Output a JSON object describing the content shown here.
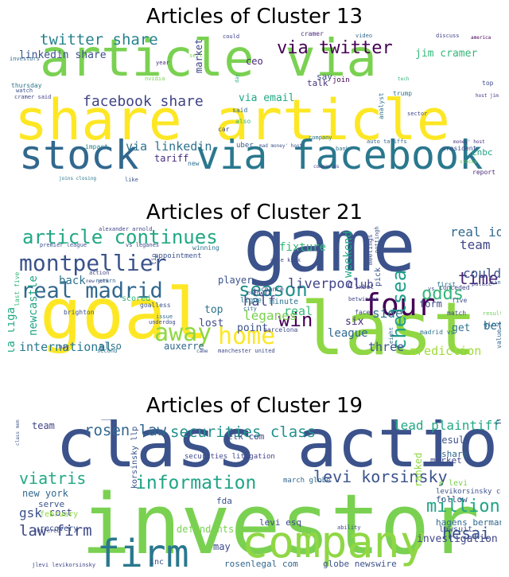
{
  "panels": [
    {
      "title": "Articles of Cluster 13",
      "words": [
        {
          "text": "article via",
          "color": "#7ad151"
        },
        {
          "text": "share article",
          "color": "#fde725"
        },
        {
          "text": "via facebook",
          "color": "#2a788e"
        },
        {
          "text": "stock",
          "color": "#31688e"
        },
        {
          "text": "twitter share",
          "color": "#26828e"
        },
        {
          "text": "linkedin share",
          "color": "#3b528b"
        },
        {
          "text": "via twitter",
          "color": "#440154"
        },
        {
          "text": "facebook share",
          "color": "#414487"
        },
        {
          "text": "via linkedin",
          "color": "#2c728e"
        },
        {
          "text": "via email",
          "color": "#22a884"
        },
        {
          "text": "jim cramer",
          "color": "#35b779"
        },
        {
          "text": "market",
          "color": "#404688"
        },
        {
          "text": "ceo",
          "color": "#482475"
        },
        {
          "text": "say",
          "color": "#3e4a89"
        },
        {
          "text": "talk",
          "color": "#46327e"
        },
        {
          "text": "join",
          "color": "#440154"
        },
        {
          "text": "said",
          "color": "#31688e"
        },
        {
          "text": "tariff",
          "color": "#472d7b"
        },
        {
          "text": "uber",
          "color": "#365c8d"
        },
        {
          "text": "car",
          "color": "#404688"
        },
        {
          "text": "new",
          "color": "#2c728e"
        },
        {
          "text": "cnbc",
          "color": "#20a486"
        },
        {
          "text": "like",
          "color": "#3b528b"
        },
        {
          "text": "impact",
          "color": "#26828e"
        },
        {
          "text": "thursday",
          "color": "#2a788e"
        },
        {
          "text": "investors",
          "color": "#31688e"
        },
        {
          "text": "cramer said",
          "color": "#404688"
        },
        {
          "text": "watch",
          "color": "#3b528b"
        },
        {
          "text": "year",
          "color": "#472d7b"
        },
        {
          "text": "could",
          "color": "#414487"
        },
        {
          "text": "cramer",
          "color": "#482878"
        },
        {
          "text": "video",
          "color": "#31688e"
        },
        {
          "text": "discuss",
          "color": "#414487"
        },
        {
          "text": "america",
          "color": "#440154"
        },
        {
          "text": "top",
          "color": "#3e4a89"
        },
        {
          "text": "analyst",
          "color": "#2c728e"
        },
        {
          "text": "trump",
          "color": "#2a788e"
        },
        {
          "text": "host jim",
          "color": "#46327e"
        },
        {
          "text": "sector",
          "color": "#404688"
        },
        {
          "text": "bank",
          "color": "#2c728e"
        },
        {
          "text": "auto tariffs",
          "color": "#31688e"
        },
        {
          "text": "president",
          "color": "#3e4a89"
        },
        {
          "text": "company",
          "color": "#2a788e"
        },
        {
          "text": "also",
          "color": "#35b779"
        },
        {
          "text": "mad money' host",
          "color": "#3b528b"
        },
        {
          "text": "money' host",
          "color": "#472d7b"
        },
        {
          "text": "companies",
          "color": "#404688"
        },
        {
          "text": "report",
          "color": "#482878"
        },
        {
          "text": "joins closing",
          "color": "#2a788e"
        },
        {
          "text": "nvidia",
          "color": "#7ad151"
        },
        {
          "text": "tech",
          "color": "#35b779"
        },
        {
          "text": "sell",
          "color": "#7ad151"
        },
        {
          "text": "day",
          "color": "#22a884"
        },
        {
          "text": "stocks",
          "color": "#6ccd5a"
        }
      ]
    },
    {
      "title": "Articles of Cluster 21",
      "words": [
        {
          "text": "game",
          "color": "#3b528b"
        },
        {
          "text": "goal",
          "color": "#fde725"
        },
        {
          "text": "last",
          "color": "#8fd744"
        },
        {
          "text": "montpellier",
          "color": "#3b528b"
        },
        {
          "text": "article continues",
          "color": "#22a884"
        },
        {
          "text": "real madrid",
          "color": "#31688e"
        },
        {
          "text": "home",
          "color": "#fde725"
        },
        {
          "text": "away",
          "color": "#8fd744"
        },
        {
          "text": "four",
          "color": "#440154"
        },
        {
          "text": "season",
          "color": "#21918c"
        },
        {
          "text": "time",
          "color": "#482475"
        },
        {
          "text": "odds",
          "color": "#35b779"
        },
        {
          "text": "team",
          "color": "#404688"
        },
        {
          "text": "real id",
          "color": "#31688e"
        },
        {
          "text": "liverpool",
          "color": "#414487"
        },
        {
          "text": "chelsea",
          "color": "#1f9e89"
        },
        {
          "text": "win",
          "color": "#440154"
        },
        {
          "text": "half",
          "color": "#3e4a89"
        },
        {
          "text": "leganes",
          "color": "#7ad151"
        },
        {
          "text": "real",
          "color": "#35b779"
        },
        {
          "text": "side",
          "color": "#2c728e"
        },
        {
          "text": "could",
          "color": "#3b528b"
        },
        {
          "text": "club",
          "color": "#414487"
        },
        {
          "text": "league",
          "color": "#31688e"
        },
        {
          "text": "three",
          "color": "#3b528b"
        },
        {
          "text": "prediction",
          "color": "#a0da39"
        },
        {
          "text": "international",
          "color": "#2a788e"
        },
        {
          "text": "auxerre",
          "color": "#31688e"
        },
        {
          "text": "also",
          "color": "#2c728e"
        },
        {
          "text": "top",
          "color": "#2c728e"
        },
        {
          "text": "lost",
          "color": "#3e4a89"
        },
        {
          "text": "point",
          "color": "#3b528b"
        },
        {
          "text": "two",
          "color": "#404688"
        },
        {
          "text": "six",
          "color": "#472d7b"
        },
        {
          "text": "get",
          "color": "#2c728e"
        },
        {
          "text": "bet",
          "color": "#31688e"
        },
        {
          "text": "form",
          "color": "#3e4a89"
        },
        {
          "text": "fixture",
          "color": "#35b779"
        },
        {
          "text": "weekend",
          "color": "#22a884"
        },
        {
          "text": "player",
          "color": "#3b528b"
        },
        {
          "text": "back",
          "color": "#2c728e"
        },
        {
          "text": "la liga",
          "color": "#22a884"
        },
        {
          "text": "newcastle",
          "color": "#20a486"
        },
        {
          "text": "scored",
          "color": "#35b779"
        },
        {
          "text": "minute",
          "color": "#2c728e"
        },
        {
          "text": "chance",
          "color": "#3e4a89"
        },
        {
          "text": "appointment",
          "color": "#3b528b"
        },
        {
          "text": "winning",
          "color": "#2c728e"
        },
        {
          "text": "barcelona",
          "color": "#3e4a89"
        },
        {
          "text": "brighton",
          "color": "#3b528b"
        },
        {
          "text": "may",
          "color": "#404688"
        },
        {
          "text": "second",
          "color": "#2c728e"
        },
        {
          "text": "came",
          "color": "#3b528b"
        },
        {
          "text": "manchester united",
          "color": "#3e4a89"
        },
        {
          "text": "first",
          "color": "#2a788e"
        },
        {
          "text": "five",
          "color": "#3b528b"
        },
        {
          "text": "match",
          "color": "#3e4a89"
        },
        {
          "text": "conceded",
          "color": "#414487"
        },
        {
          "text": "palace",
          "color": "#404688"
        },
        {
          "text": "since",
          "color": "#31688e"
        },
        {
          "text": "result",
          "color": "#6ccd5a"
        },
        {
          "text": "girona",
          "color": "#2c728e"
        },
        {
          "text": "value",
          "color": "#31688e"
        },
        {
          "text": "pick",
          "color": "#3b528b"
        },
        {
          "text": "meetings",
          "color": "#3e4a89"
        },
        {
          "text": "1xbet",
          "color": "#414487"
        },
        {
          "text": "face",
          "color": "#3e4a89"
        },
        {
          "text": "ligue",
          "color": "#2a788e"
        },
        {
          "text": "even",
          "color": "#3b528b"
        },
        {
          "text": "issue",
          "color": "#31688e"
        },
        {
          "text": "goalless",
          "color": "#3b528b"
        },
        {
          "text": "underdog",
          "color": "#3e4a89"
        },
        {
          "text": "alexander arnold",
          "color": "#404688"
        },
        {
          "text": "premier league",
          "color": "#3b528b"
        },
        {
          "text": "vs leganes",
          "color": "#3e4a89"
        },
        {
          "text": "action",
          "color": "#414487"
        },
        {
          "text": "new york",
          "color": "#3e4a89"
        },
        {
          "text": "last five",
          "color": "#35b779"
        },
        {
          "text": "return",
          "color": "#31688e"
        },
        {
          "text": "tip",
          "color": "#3b528b"
        },
        {
          "text": "madrid vs",
          "color": "#2c728e"
        },
        {
          "text": "date kick",
          "color": "#3e4a89"
        },
        {
          "text": "nottingham forest",
          "color": "#3b528b"
        },
        {
          "text": "eight",
          "color": "#31688e"
        },
        {
          "text": "vs",
          "color": "#3b528b"
        },
        {
          "text": "city",
          "color": "#31688e"
        },
        {
          "text": "betwinner",
          "color": "#404688"
        }
      ]
    },
    {
      "title": "Articles of Cluster 19",
      "words": [
        {
          "text": "class action",
          "color": "#3b528b"
        },
        {
          "text": "investor",
          "color": "#7ad151"
        },
        {
          "text": "company",
          "color": "#8fd744"
        },
        {
          "text": "firm",
          "color": "#2a788e"
        },
        {
          "text": "rosen law",
          "color": "#31688e"
        },
        {
          "text": "securities class",
          "color": "#21918c"
        },
        {
          "text": "information",
          "color": "#20a486"
        },
        {
          "text": "levi korsinsky",
          "color": "#3b528b"
        },
        {
          "text": "lead plaintiff",
          "color": "#22a884"
        },
        {
          "text": "viatris",
          "color": "#22a884"
        },
        {
          "text": "million",
          "color": "#20a486"
        },
        {
          "text": "hesai",
          "color": "#3b528b"
        },
        {
          "text": "law firm",
          "color": "#3e4a89"
        },
        {
          "text": "gsk",
          "color": "#3b528b"
        },
        {
          "text": "team",
          "color": "#414487"
        },
        {
          "text": "cost",
          "color": "#3e4a89"
        },
        {
          "text": "new york",
          "color": "#31688e"
        },
        {
          "text": "serve",
          "color": "#3b528b"
        },
        {
          "text": "february",
          "color": "#8fd744"
        },
        {
          "text": "recovery",
          "color": "#3b528b"
        },
        {
          "text": "suffered",
          "color": "#3e4a89"
        },
        {
          "text": "zlk com",
          "color": "#3e4a89"
        },
        {
          "text": "securities litigation",
          "color": "#404688"
        },
        {
          "text": "fda",
          "color": "#3b528b"
        },
        {
          "text": "march globe",
          "color": "#31688e"
        },
        {
          "text": "result",
          "color": "#3b528b"
        },
        {
          "text": "share",
          "color": "#31688e"
        },
        {
          "text": "market",
          "color": "#3e4a89"
        },
        {
          "text": "joseph e",
          "color": "#414487"
        },
        {
          "text": "follow",
          "color": "#3b528b"
        },
        {
          "text": "e levi",
          "color": "#7ad151"
        },
        {
          "text": "levikorsinsky com",
          "color": "#3b528b"
        },
        {
          "text": "hagens berman",
          "color": "#31688e"
        },
        {
          "text": "lawsuit",
          "color": "#3b528b"
        },
        {
          "text": "investigation",
          "color": "#404688"
        },
        {
          "text": "ranked",
          "color": "#8fd744"
        },
        {
          "text": "levi esq",
          "color": "#3e4a89"
        },
        {
          "text": "korsinsky llp",
          "color": "#3b528b"
        },
        {
          "text": "defendants",
          "color": "#7ad151"
        },
        {
          "text": "may",
          "color": "#3e4a89"
        },
        {
          "text": "inc",
          "color": "#3b528b"
        },
        {
          "text": "rosenlegal com",
          "color": "#31688e"
        },
        {
          "text": "globe newswire",
          "color": "#3b528b"
        },
        {
          "text": "ability",
          "color": "#3e4a89"
        },
        {
          "text": "class member",
          "color": "#3b528b"
        },
        {
          "text": "jlevi levikorsinsky",
          "color": "#404688"
        }
      ]
    }
  ]
}
